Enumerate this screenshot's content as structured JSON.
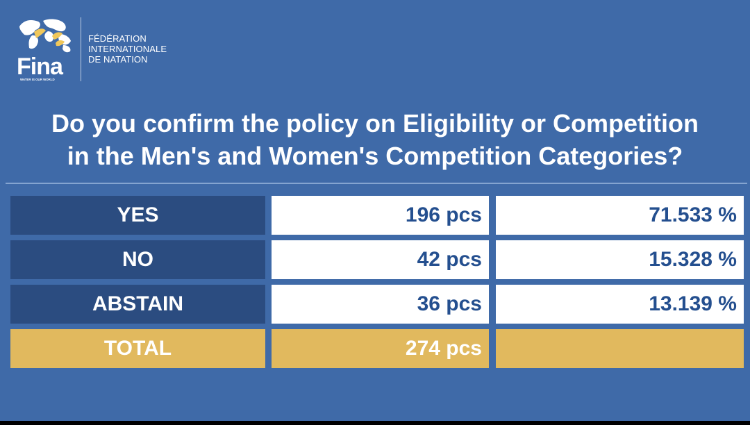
{
  "logo": {
    "brand": "Fina",
    "tagline": "WATER IS OUR WORLD",
    "organization_lines": [
      "FÉDÉRATION",
      "INTERNATIONALE",
      "DE NATATION"
    ]
  },
  "question_lines": [
    "Do you confirm the policy on Eligibility or Competition",
    "in the Men's and Women's Competition Categories?"
  ],
  "colors": {
    "background": "#3f6aa8",
    "label_cell": "#2b4c80",
    "value_cell": "#ffffff",
    "value_text": "#244f8f",
    "total_cell": "#e1b95e"
  },
  "chart_data": {
    "type": "table",
    "title": "Do you confirm the policy on Eligibility or Competition in the Men's and Women's Competition Categories?",
    "rows": [
      {
        "label": "YES",
        "value": 196,
        "count_display": "196 pcs",
        "percent": 71.533,
        "percent_display": "71.533 %"
      },
      {
        "label": "NO",
        "value": 42,
        "count_display": "42 pcs",
        "percent": 15.328,
        "percent_display": "15.328 %"
      },
      {
        "label": "ABSTAIN",
        "value": 36,
        "count_display": "36 pcs",
        "percent": 13.139,
        "percent_display": "13.139 %"
      }
    ],
    "total": {
      "label": "TOTAL",
      "value": 274,
      "count_display": "274 pcs",
      "percent_display": ""
    }
  }
}
